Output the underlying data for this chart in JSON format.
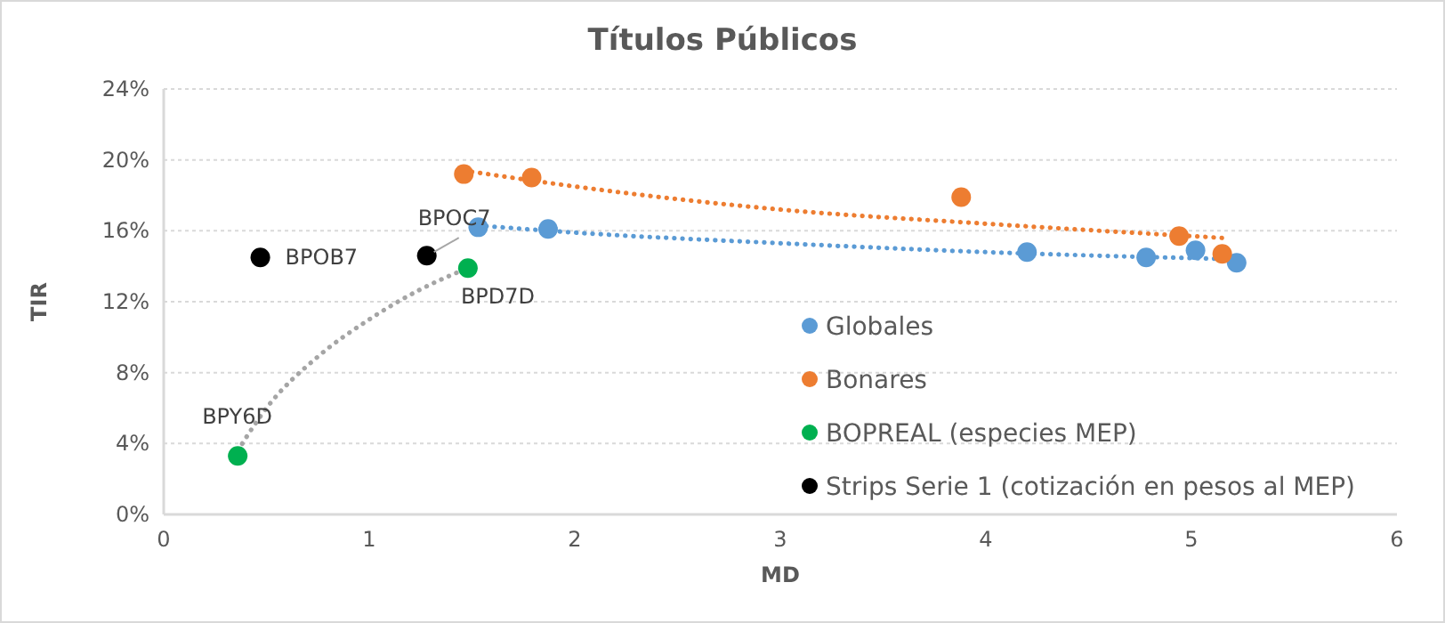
{
  "chart_data": {
    "type": "scatter",
    "title": "Títulos Públicos",
    "xlabel": "MD",
    "ylabel": "TIR",
    "xlim": [
      0,
      6
    ],
    "xticks": [
      0,
      1,
      2,
      3,
      4,
      5,
      6
    ],
    "ylim": [
      0,
      24
    ],
    "yticks": [
      {
        "value": 0,
        "label": "0%"
      },
      {
        "value": 4,
        "label": "4%"
      },
      {
        "value": 8,
        "label": "8%"
      },
      {
        "value": 12,
        "label": "12%"
      },
      {
        "value": 16,
        "label": "16%"
      },
      {
        "value": 20,
        "label": "20%"
      },
      {
        "value": 24,
        "label": "24%"
      }
    ],
    "grid": "y",
    "legend": "right",
    "marker": "circle",
    "series": [
      {
        "name": "Globales",
        "color": "#5b9bd5",
        "x": [
          1.53,
          1.87,
          4.2,
          4.78,
          5.02,
          5.22
        ],
        "values": [
          16.2,
          16.1,
          14.8,
          14.5,
          14.9,
          14.2
        ]
      },
      {
        "name": "Bonares",
        "color": "#ed7d31",
        "x": [
          1.46,
          1.79,
          3.88,
          4.94,
          5.15
        ],
        "values": [
          19.2,
          19.0,
          17.9,
          15.7,
          14.7
        ]
      },
      {
        "name": "BOPREAL (especies MEP)",
        "color": "#00b050",
        "x": [
          0.36,
          1.48
        ],
        "values": [
          3.3,
          13.9
        ]
      },
      {
        "name": "Strips Serie 1 (cotización en pesos al MEP)",
        "color": "#000000",
        "x": [
          0.47,
          1.28
        ],
        "values": [
          14.5,
          14.6
        ]
      },
      {
        "type": "line",
        "line_style": "dotted",
        "marker": "none",
        "color": "#5b9bd5",
        "x": [
          1.53,
          2,
          3,
          4,
          5.22
        ],
        "values": [
          16.3,
          15.9,
          15.3,
          14.8,
          14.4
        ]
      },
      {
        "type": "line",
        "line_style": "dotted",
        "marker": "none",
        "color": "#ed7d31",
        "x": [
          1.46,
          2,
          3,
          4,
          5.15
        ],
        "values": [
          19.4,
          18.5,
          17.2,
          16.4,
          15.6
        ]
      },
      {
        "type": "line",
        "line_style": "dotted",
        "marker": "none",
        "color": "#a5a5a5",
        "x": [
          0.36,
          0.5,
          0.75,
          1,
          1.25,
          1.48
        ],
        "values": [
          3.6,
          6.0,
          8.9,
          11.0,
          12.7,
          13.9
        ]
      }
    ],
    "annotations": [
      {
        "text": "BPOB7",
        "x": 0.47,
        "y": 14.5
      },
      {
        "text": "BPOC7",
        "x": 1.28,
        "y": 14.6
      },
      {
        "text": "BPD7D",
        "x": 1.48,
        "y": 13.9
      },
      {
        "text": "BPY6D",
        "x": 0.36,
        "y": 3.3
      }
    ]
  }
}
